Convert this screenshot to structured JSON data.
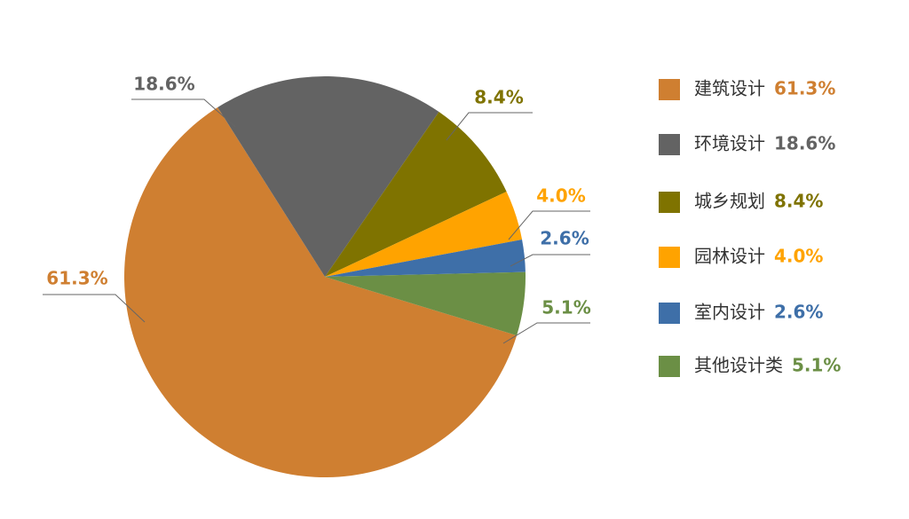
{
  "chart_data": {
    "type": "pie",
    "categories": [
      "建筑设计",
      "环境设计",
      "城乡规划",
      "园林设计",
      "室内设计",
      "其他设计类"
    ],
    "values": [
      61.3,
      18.6,
      8.4,
      4.0,
      2.6,
      5.1
    ],
    "value_labels": [
      "61.3%",
      "18.6%",
      "8.4%",
      "4.0%",
      "2.6%",
      "5.1%"
    ],
    "colors": [
      "#cf7f31",
      "#636363",
      "#7f7300",
      "#ffa300",
      "#3e6fa8",
      "#6b8f45"
    ],
    "legend": "right"
  }
}
